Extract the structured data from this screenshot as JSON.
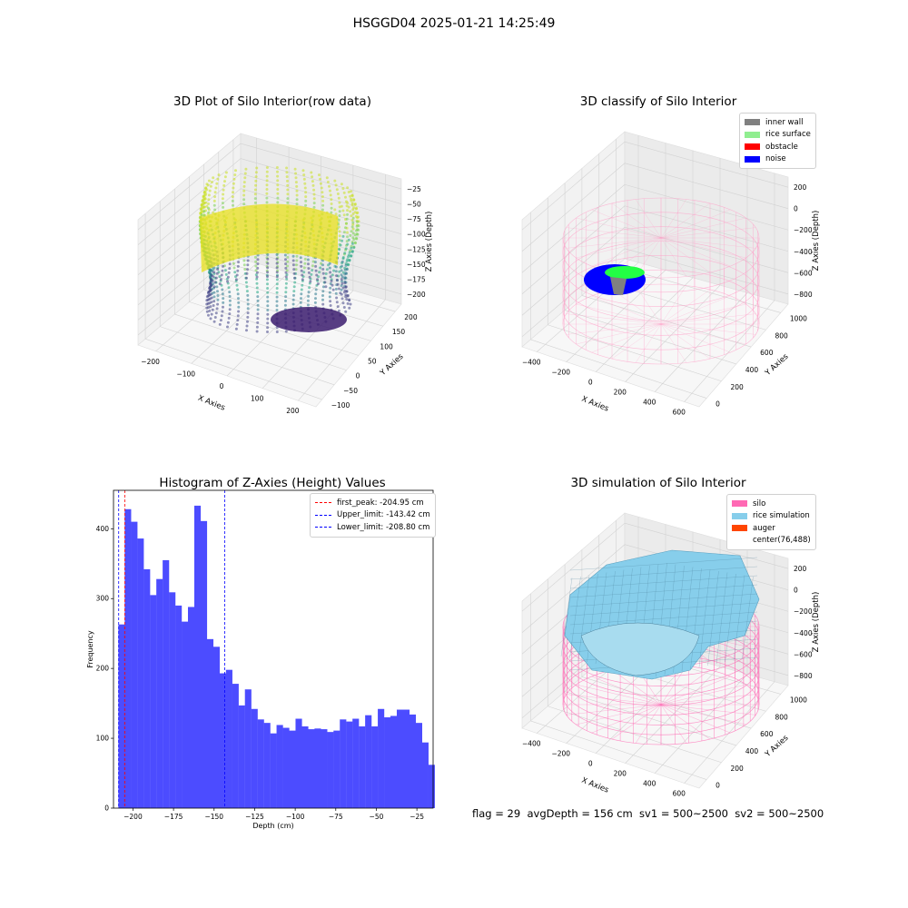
{
  "figure": {
    "suptitle": "HSGGD04 2025-01-21 14:25:49",
    "footer": "flag = 29  avgDepth = 156 cm  sv1 = 500~2500  sv2 = 500~2500"
  },
  "panels": {
    "raw": {
      "title": "3D Plot of Silo Interior(row data)",
      "xlabel": "X Axies",
      "ylabel": "Y Axies",
      "zlabel": "Z Axies (Depth)",
      "xticks": [
        "−200",
        "−100",
        "0",
        "100",
        "200"
      ],
      "yticks": [
        "−100",
        "−50",
        "0",
        "50",
        "100",
        "150",
        "200"
      ],
      "zticks": [
        "−25",
        "−50",
        "−75",
        "−100",
        "−125",
        "−150",
        "−175",
        "−200"
      ]
    },
    "classify": {
      "title": "3D classify of Silo Interior",
      "xlabel": "X Axies",
      "ylabel": "Y Axies",
      "zlabel": "Z Axies (Depth)",
      "xticks": [
        "−400",
        "−200",
        "0",
        "200",
        "400",
        "600"
      ],
      "yticks": [
        "0",
        "200",
        "400",
        "600",
        "800",
        "1000"
      ],
      "zticks": [
        "200",
        "0",
        "−200",
        "−400",
        "−600",
        "−800"
      ],
      "legend": [
        {
          "label": "inner wall",
          "color": "#808080"
        },
        {
          "label": "rice surface",
          "color": "#90ee90"
        },
        {
          "label": "obstacle",
          "color": "#ff0000"
        },
        {
          "label": "noise",
          "color": "#0000ff"
        }
      ]
    },
    "simulation": {
      "title": "3D simulation of Silo Interior",
      "xlabel": "X Axies",
      "ylabel": "Y Axies",
      "zlabel": "Z Axies (Depth)",
      "xticks": [
        "−400",
        "−200",
        "0",
        "200",
        "400",
        "600"
      ],
      "yticks": [
        "0",
        "200",
        "400",
        "600",
        "800",
        "1000"
      ],
      "zticks": [
        "200",
        "0",
        "−200",
        "−400",
        "−600",
        "−800"
      ],
      "legend": [
        {
          "label": "silo",
          "color": "#ff69b4"
        },
        {
          "label": "rice simulation",
          "color": "#87ceeb"
        },
        {
          "label": "auger",
          "color": "#ff4500"
        },
        {
          "label": "center(76,488)",
          "color": "#ffffff"
        }
      ]
    }
  },
  "chart_data": {
    "type": "bar",
    "title": "Histogram of Z-Axies (Height) Values",
    "xlabel": "Depth (cm)",
    "ylabel": "Frequency",
    "xlim": [
      -212,
      -15
    ],
    "ylim": [
      0,
      455
    ],
    "xticks": [
      -200,
      -175,
      -150,
      -125,
      -100,
      -75,
      -50,
      -25
    ],
    "xtick_labels": [
      "−200",
      "−175",
      "−150",
      "−125",
      "−100",
      "−75",
      "−50",
      "−25"
    ],
    "yticks": [
      0,
      100,
      200,
      300,
      400
    ],
    "bin_start": -209,
    "bin_width": 3.9,
    "bar_color": "#4c4cff",
    "values": [
      263,
      428,
      410,
      386,
      342,
      305,
      328,
      355,
      309,
      290,
      267,
      288,
      433,
      411,
      242,
      231,
      193,
      198,
      178,
      147,
      170,
      142,
      127,
      122,
      107,
      119,
      115,
      111,
      128,
      117,
      113,
      114,
      113,
      109,
      111,
      127,
      124,
      128,
      117,
      133,
      117,
      142,
      130,
      132,
      141,
      141,
      134,
      122,
      94,
      62
    ],
    "vlines": [
      {
        "label": "first_peak: -204.95 cm",
        "x": -204.95,
        "color": "#ff0000"
      },
      {
        "label": "Upper_limit: -143.42 cm",
        "x": -143.42,
        "color": "#0000ff"
      },
      {
        "label": "Lower_limit: -208.80 cm",
        "x": -208.8,
        "color": "#0000ff"
      }
    ]
  }
}
